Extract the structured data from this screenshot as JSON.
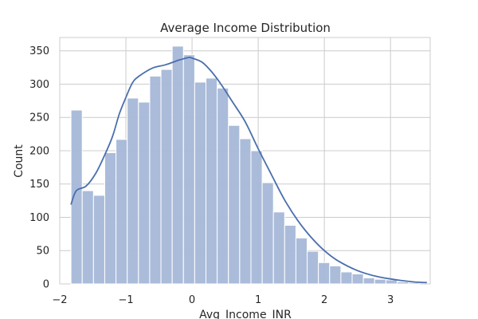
{
  "chart_data": {
    "type": "histogram",
    "title": "Average Income Distribution",
    "xlabel": "Avg_Income_INR",
    "ylabel": "Count",
    "xlim": [
      -2.0,
      3.6
    ],
    "ylim": [
      0,
      370
    ],
    "xticks": [
      "−2",
      "−1",
      "0",
      "1",
      "2",
      "3"
    ],
    "xtick_values": [
      -2,
      -1,
      0,
      1,
      2,
      3
    ],
    "yticks": [
      "0",
      "50",
      "100",
      "150",
      "200",
      "250",
      "300",
      "350"
    ],
    "ytick_values": [
      0,
      50,
      100,
      150,
      200,
      250,
      300,
      350
    ],
    "grid": true,
    "bar_color": "#a6b8d8",
    "line_color": "#4a6fad",
    "bins": [
      {
        "x0": -1.83,
        "x1": -1.66,
        "count": 261
      },
      {
        "x0": -1.66,
        "x1": -1.49,
        "count": 140
      },
      {
        "x0": -1.49,
        "x1": -1.32,
        "count": 133
      },
      {
        "x0": -1.32,
        "x1": -1.15,
        "count": 197
      },
      {
        "x0": -1.15,
        "x1": -0.98,
        "count": 217
      },
      {
        "x0": -0.98,
        "x1": -0.81,
        "count": 279
      },
      {
        "x0": -0.81,
        "x1": -0.64,
        "count": 273
      },
      {
        "x0": -0.64,
        "x1": -0.47,
        "count": 312
      },
      {
        "x0": -0.47,
        "x1": -0.3,
        "count": 322
      },
      {
        "x0": -0.3,
        "x1": -0.13,
        "count": 357
      },
      {
        "x0": -0.13,
        "x1": 0.04,
        "count": 344
      },
      {
        "x0": 0.04,
        "x1": 0.21,
        "count": 303
      },
      {
        "x0": 0.21,
        "x1": 0.38,
        "count": 309
      },
      {
        "x0": 0.38,
        "x1": 0.55,
        "count": 294
      },
      {
        "x0": 0.55,
        "x1": 0.72,
        "count": 238
      },
      {
        "x0": 0.72,
        "x1": 0.89,
        "count": 218
      },
      {
        "x0": 0.89,
        "x1": 1.06,
        "count": 200
      },
      {
        "x0": 1.06,
        "x1": 1.23,
        "count": 152
      },
      {
        "x0": 1.23,
        "x1": 1.4,
        "count": 108
      },
      {
        "x0": 1.4,
        "x1": 1.57,
        "count": 88
      },
      {
        "x0": 1.57,
        "x1": 1.74,
        "count": 69
      },
      {
        "x0": 1.74,
        "x1": 1.91,
        "count": 49
      },
      {
        "x0": 1.91,
        "x1": 2.08,
        "count": 32
      },
      {
        "x0": 2.08,
        "x1": 2.25,
        "count": 27
      },
      {
        "x0": 2.25,
        "x1": 2.42,
        "count": 18
      },
      {
        "x0": 2.42,
        "x1": 2.59,
        "count": 15
      },
      {
        "x0": 2.59,
        "x1": 2.76,
        "count": 9
      },
      {
        "x0": 2.76,
        "x1": 2.93,
        "count": 7
      },
      {
        "x0": 2.93,
        "x1": 3.1,
        "count": 6
      },
      {
        "x0": 3.1,
        "x1": 3.27,
        "count": 3
      },
      {
        "x0": 3.27,
        "x1": 3.44,
        "count": 2
      }
    ],
    "kde": {
      "x": [
        -1.83,
        -1.75,
        -1.6,
        -1.45,
        -1.3,
        -1.2,
        -1.1,
        -1.0,
        -0.9,
        -0.8,
        -0.6,
        -0.4,
        -0.2,
        -0.05,
        0.0,
        0.15,
        0.3,
        0.45,
        0.6,
        0.8,
        1.0,
        1.2,
        1.4,
        1.6,
        1.8,
        2.0,
        2.2,
        2.5,
        2.8,
        3.1,
        3.35,
        3.55
      ],
      "y": [
        119,
        140,
        147,
        167,
        198,
        222,
        255,
        280,
        302,
        312,
        324,
        329,
        336,
        340,
        339,
        333,
        318,
        298,
        275,
        244,
        203,
        164,
        126,
        95,
        70,
        50,
        35,
        20,
        11,
        6,
        3,
        2
      ]
    }
  }
}
